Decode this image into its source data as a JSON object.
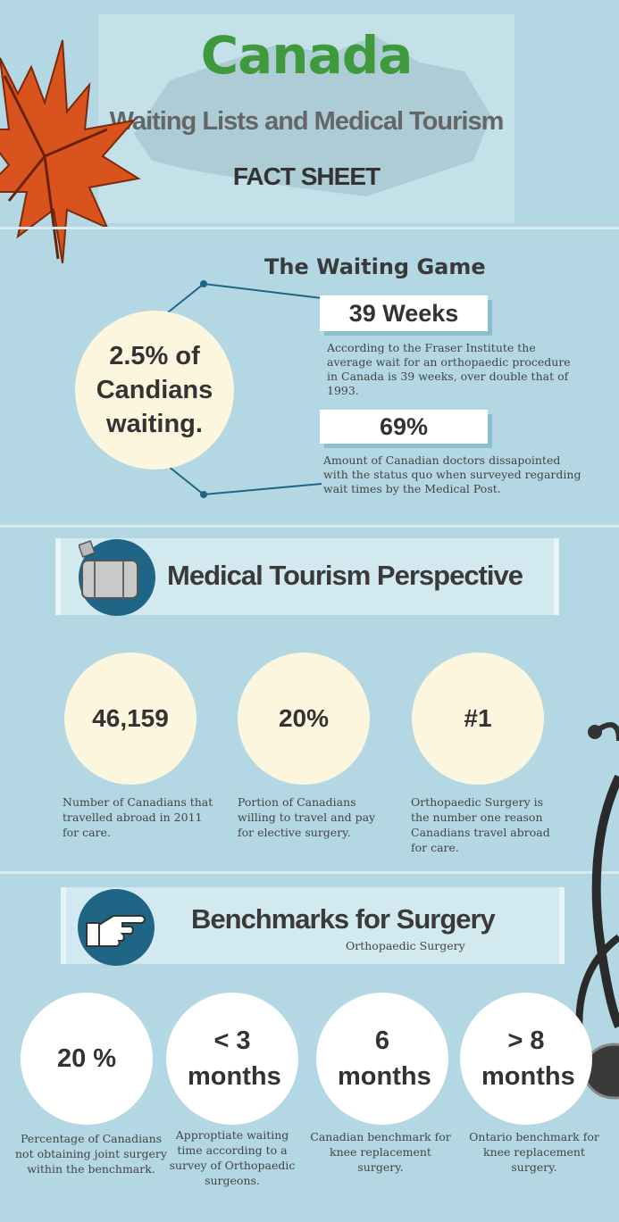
{
  "header": {
    "title": "Canada",
    "subtitle": "Waiting Lists and Medical Tourism",
    "tag": "FACT SHEET"
  },
  "waiting_game": {
    "title": "The Waiting Game",
    "circle_text": "2.5% of Candians waiting.",
    "stats": [
      {
        "value": "39 Weeks",
        "desc": "According to the Fraser Institute the average wait for an orthopaedic procedure in Canada is 39 weeks, over double that of 1993."
      },
      {
        "value": "69%",
        "desc": "Amount of Canadian doctors dissapointed with the status quo when surveyed regarding wait times by the Medical Post."
      }
    ]
  },
  "tourism": {
    "title": "Medical Tourism Perspective",
    "items": [
      {
        "value": "46,159",
        "desc": "Number of Canadians that travelled abroad in 2011 for care."
      },
      {
        "value": "20%",
        "desc": "Portion of Canadians willing to travel and pay for elective surgery."
      },
      {
        "value": "#1",
        "desc": "Orthopaedic Surgery is the number one reason Canadians travel abroad for care."
      }
    ]
  },
  "benchmarks": {
    "title": "Benchmarks for Surgery",
    "subtitle": "Orthopaedic Surgery",
    "items": [
      {
        "value": "20 %",
        "desc": "Percentage of Canadians not obtaining joint surgery within the benchmark."
      },
      {
        "value": "< 3 months",
        "desc": "Approptiate waiting time according to a survey of Orthopaedic surgeons."
      },
      {
        "value": "6 months",
        "desc": "Canadian benchmark for knee replacement surgery."
      },
      {
        "value": "> 8 months",
        "desc": "Ontario benchmark for knee replacement surgery."
      }
    ]
  },
  "colors": {
    "background": "#b3d8e3",
    "title_green": "#3f9a3d",
    "circle_cream": "#fcf6df",
    "icon_blue": "#1f6585",
    "leaf_orange": "#d9531e"
  },
  "icons": [
    "maple-leaf-icon",
    "suitcase-icon",
    "pointing-hand-icon",
    "stethoscope-icon"
  ]
}
